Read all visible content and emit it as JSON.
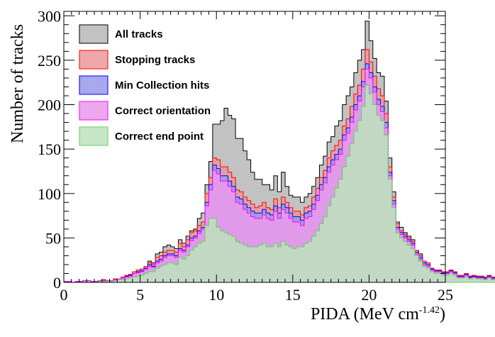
{
  "chart_data": {
    "type": "histogram",
    "xlabel": "PIDA (MeV cm",
    "xlabel_sup": "-1.42",
    "xlabel_end": ")",
    "ylabel": "Number of tracks",
    "xlim": [
      0,
      25
    ],
    "ylim": [
      0,
      305
    ],
    "xticks": [
      0,
      5,
      10,
      15,
      20,
      25
    ],
    "yticks": [
      0,
      50,
      100,
      150,
      200,
      250,
      300
    ],
    "bin_width": 0.25,
    "x_start": 0,
    "legend_position": "top-left",
    "series": [
      {
        "name": "All tracks",
        "stroke": "#000000",
        "fill": "#bfbfbf",
        "values": [
          1,
          1,
          0,
          1,
          1,
          2,
          2,
          1,
          1,
          2,
          3,
          2,
          2,
          4,
          4,
          6,
          8,
          9,
          12,
          14,
          15,
          18,
          24,
          22,
          32,
          34,
          40,
          42,
          40,
          38,
          48,
          44,
          52,
          58,
          60,
          72,
          78,
          110,
          136,
          178,
          178,
          182,
          196,
          188,
          184,
          162,
          162,
          148,
          138,
          124,
          116,
          116,
          110,
          110,
          104,
          120,
          102,
          124,
          108,
          98,
          96,
          96,
          90,
          96,
          100,
          108,
          118,
          132,
          142,
          158,
          164,
          176,
          182,
          200,
          210,
          220,
          236,
          250,
          262,
          294,
          272,
          252,
          236,
          232,
          204,
          140,
          102,
          68,
          62,
          56,
          52,
          48,
          36,
          32,
          24,
          22,
          16,
          14,
          14,
          12,
          12,
          14,
          12,
          8,
          8,
          10,
          7,
          8,
          7,
          7,
          6,
          8,
          6,
          6,
          8,
          6,
          6,
          4,
          6,
          6,
          5,
          4,
          4,
          4,
          4
        ]
      },
      {
        "name": "Stopping tracks",
        "stroke": "#ff0000",
        "fill": "#f4a0a0",
        "values": [
          1,
          1,
          0,
          1,
          1,
          2,
          2,
          1,
          1,
          2,
          3,
          2,
          2,
          4,
          4,
          6,
          8,
          9,
          12,
          14,
          15,
          18,
          22,
          20,
          28,
          30,
          34,
          36,
          36,
          34,
          44,
          40,
          48,
          56,
          58,
          64,
          68,
          100,
          118,
          140,
          138,
          130,
          130,
          124,
          118,
          104,
          102,
          96,
          92,
          88,
          84,
          86,
          90,
          84,
          82,
          94,
          84,
          96,
          90,
          84,
          80,
          80,
          76,
          84,
          86,
          96,
          106,
          118,
          126,
          140,
          148,
          154,
          160,
          176,
          184,
          198,
          212,
          222,
          240,
          262,
          248,
          232,
          218,
          210,
          190,
          130,
          96,
          66,
          58,
          54,
          50,
          46,
          36,
          30,
          24,
          22,
          16,
          14,
          14,
          12,
          12,
          14,
          12,
          8,
          8,
          10,
          7,
          8,
          7,
          7,
          6,
          8,
          6,
          6,
          8,
          6,
          6,
          4,
          6,
          6,
          5,
          4,
          4,
          4,
          4
        ]
      },
      {
        "name": "Min Collection hits",
        "stroke": "#0000ff",
        "fill": "#a0a0f4",
        "values": [
          1,
          1,
          0,
          1,
          1,
          2,
          2,
          1,
          1,
          2,
          2,
          2,
          2,
          3,
          4,
          5,
          7,
          8,
          10,
          12,
          13,
          16,
          20,
          18,
          24,
          26,
          30,
          32,
          32,
          30,
          38,
          36,
          42,
          50,
          52,
          58,
          62,
          90,
          110,
          132,
          128,
          120,
          120,
          114,
          108,
          96,
          94,
          88,
          84,
          80,
          78,
          78,
          82,
          78,
          76,
          86,
          78,
          88,
          84,
          78,
          74,
          74,
          70,
          78,
          80,
          88,
          98,
          110,
          118,
          130,
          138,
          144,
          150,
          166,
          174,
          186,
          200,
          210,
          226,
          246,
          236,
          220,
          206,
          198,
          180,
          124,
          92,
          62,
          56,
          52,
          48,
          44,
          34,
          28,
          22,
          20,
          15,
          13,
          13,
          11,
          11,
          13,
          11,
          7,
          7,
          9,
          6,
          7,
          6,
          6,
          5,
          7,
          5,
          5,
          7,
          5,
          5,
          3,
          5,
          5,
          4,
          3,
          3,
          3,
          3
        ]
      },
      {
        "name": "Correct orientation",
        "stroke": "#ff00ff",
        "fill": "#f4a0f4",
        "values": [
          1,
          1,
          0,
          1,
          1,
          2,
          2,
          1,
          1,
          2,
          2,
          2,
          2,
          3,
          4,
          5,
          6,
          7,
          10,
          11,
          12,
          15,
          18,
          17,
          22,
          24,
          28,
          30,
          30,
          28,
          36,
          34,
          40,
          47,
          50,
          55,
          60,
          86,
          104,
          126,
          122,
          114,
          114,
          108,
          102,
          90,
          88,
          82,
          78,
          74,
          72,
          72,
          76,
          72,
          70,
          80,
          72,
          82,
          78,
          72,
          68,
          68,
          64,
          72,
          74,
          82,
          92,
          104,
          112,
          124,
          132,
          138,
          144,
          160,
          168,
          180,
          194,
          204,
          220,
          240,
          230,
          214,
          200,
          192,
          174,
          120,
          88,
          60,
          54,
          50,
          46,
          42,
          32,
          26,
          20,
          18,
          14,
          12,
          12,
          10,
          10,
          12,
          10,
          6,
          6,
          8,
          5,
          6,
          5,
          5,
          4,
          6,
          4,
          4,
          6,
          4,
          4,
          3,
          4,
          4,
          3,
          2,
          2,
          2,
          2
        ]
      },
      {
        "name": "Correct end point",
        "stroke": "#66cc66",
        "fill": "#c4ecc4",
        "values": [
          0,
          0,
          0,
          0,
          0,
          1,
          1,
          0,
          0,
          1,
          1,
          1,
          1,
          2,
          3,
          3,
          4,
          5,
          6,
          7,
          8,
          10,
          12,
          12,
          16,
          18,
          20,
          22,
          22,
          20,
          28,
          26,
          30,
          36,
          40,
          44,
          46,
          64,
          72,
          72,
          62,
          58,
          56,
          54,
          52,
          46,
          44,
          42,
          40,
          40,
          40,
          42,
          44,
          40,
          40,
          44,
          40,
          46,
          42,
          40,
          38,
          40,
          40,
          44,
          46,
          52,
          58,
          66,
          74,
          86,
          96,
          106,
          116,
          130,
          142,
          156,
          170,
          182,
          198,
          222,
          212,
          200,
          188,
          182,
          166,
          116,
          84,
          56,
          50,
          46,
          42,
          38,
          30,
          24,
          18,
          16,
          12,
          10,
          10,
          8,
          8,
          10,
          8,
          5,
          5,
          6,
          4,
          5,
          4,
          4,
          3,
          5,
          3,
          3,
          5,
          3,
          3,
          2,
          3,
          3,
          2,
          1,
          1,
          1,
          1
        ]
      }
    ]
  }
}
